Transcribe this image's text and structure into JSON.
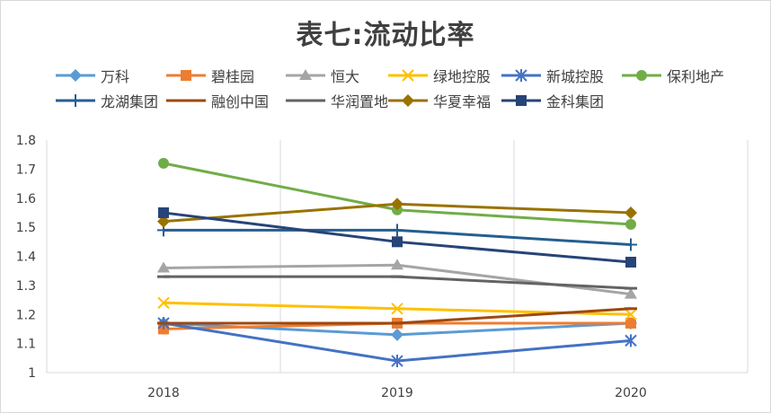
{
  "chart_data": {
    "type": "line",
    "title": "表七:流动比率",
    "xlabel": "",
    "ylabel": "",
    "categories": [
      "2018",
      "2019",
      "2020"
    ],
    "ylim": [
      1,
      1.8
    ],
    "yticks": [
      "1",
      "1.1",
      "1.2",
      "1.3",
      "1.4",
      "1.5",
      "1.6",
      "1.7",
      "1.8"
    ],
    "ytick_values": [
      1,
      1.1,
      1.2,
      1.3,
      1.4,
      1.5,
      1.6,
      1.7,
      1.8
    ],
    "grid": "vertical",
    "legend": "top",
    "series": [
      {
        "name": "万科",
        "values": [
          1.17,
          1.13,
          1.17
        ],
        "color": "#5b9bd5",
        "marker": "diamond"
      },
      {
        "name": "碧桂园",
        "values": [
          1.15,
          1.17,
          1.17
        ],
        "color": "#ed7d31",
        "marker": "square"
      },
      {
        "name": "恒大",
        "values": [
          1.36,
          1.37,
          1.27
        ],
        "color": "#a5a5a5",
        "marker": "triangle"
      },
      {
        "name": "绿地控股",
        "values": [
          1.24,
          1.22,
          1.2
        ],
        "color": "#ffc000",
        "marker": "x"
      },
      {
        "name": "新城控股",
        "values": [
          1.17,
          1.04,
          1.11
        ],
        "color": "#4472c4",
        "marker": "star"
      },
      {
        "name": "保利地产",
        "values": [
          1.72,
          1.56,
          1.51
        ],
        "color": "#70ad47",
        "marker": "circle"
      },
      {
        "name": "龙湖集团",
        "values": [
          1.49,
          1.49,
          1.44
        ],
        "color": "#255e91",
        "marker": "plus"
      },
      {
        "name": "融创中国",
        "values": [
          1.17,
          1.17,
          1.22
        ],
        "color": "#9e480e",
        "marker": "dash"
      },
      {
        "name": "华润置地",
        "values": [
          1.33,
          1.33,
          1.29
        ],
        "color": "#636363",
        "marker": "dash"
      },
      {
        "name": "华夏幸福",
        "values": [
          1.52,
          1.58,
          1.55
        ],
        "color": "#997300",
        "marker": "diamond"
      },
      {
        "name": "金科集团",
        "values": [
          1.55,
          1.45,
          1.38
        ],
        "color": "#264478",
        "marker": "square"
      }
    ]
  }
}
